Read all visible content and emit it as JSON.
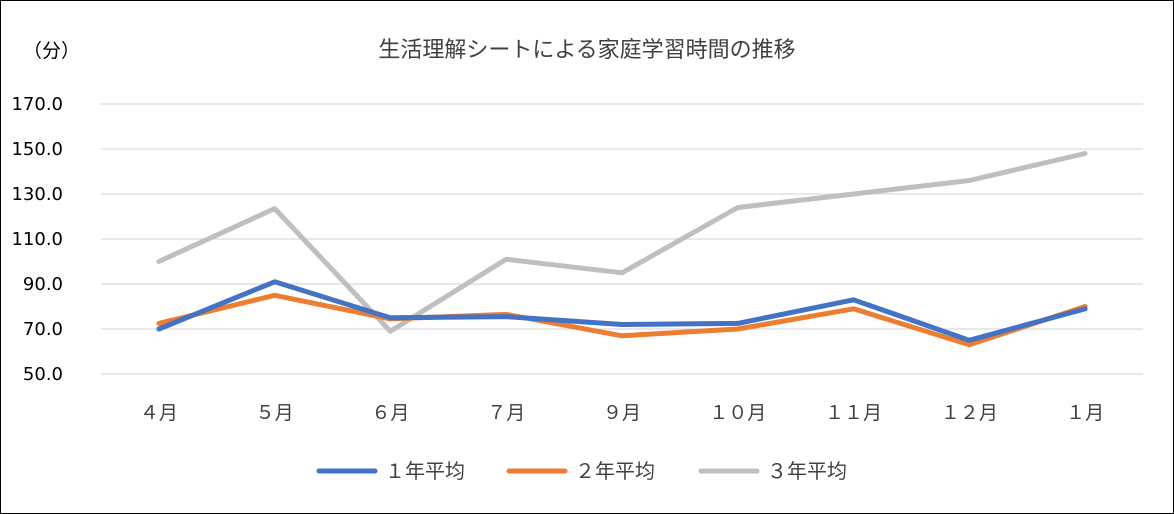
{
  "chart_data": {
    "type": "line",
    "title": "生活理解シートによる家庭学習時間の推移",
    "y_unit_label": "（分）",
    "xlabel": "",
    "ylabel": "",
    "categories": [
      "４月",
      "５月",
      "６月",
      "７月",
      "９月",
      "１０月",
      "１１月",
      "１２月",
      "１月"
    ],
    "y_ticks": [
      "50.0",
      "70.0",
      "90.0",
      "110.0",
      "130.0",
      "150.0",
      "170.0"
    ],
    "ylim": [
      50,
      170
    ],
    "grid": true,
    "legend_position": "bottom",
    "series": [
      {
        "name": "１年平均",
        "color": "#4472c4",
        "values": [
          70,
          91,
          75,
          75.5,
          72,
          72.5,
          83,
          65,
          79
        ]
      },
      {
        "name": "２年平均",
        "color": "#ed7d31",
        "values": [
          72.5,
          85,
          74.5,
          76.5,
          67,
          70,
          79,
          63,
          80
        ]
      },
      {
        "name": "３年平均",
        "color": "#bfbfbf",
        "values": [
          100,
          123.5,
          69,
          101,
          95,
          124,
          130,
          136,
          148
        ]
      }
    ]
  }
}
